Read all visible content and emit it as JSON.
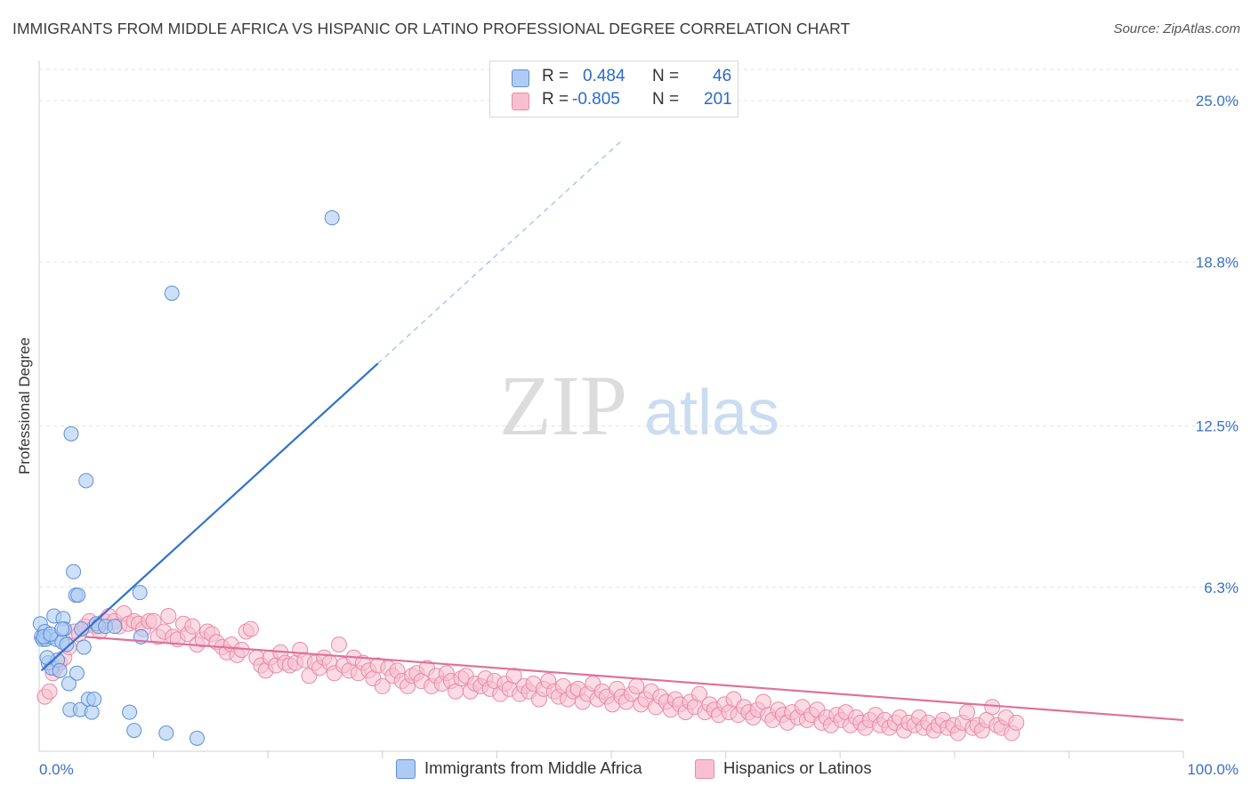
{
  "title": "IMMIGRANTS FROM MIDDLE AFRICA VS HISPANIC OR LATINO PROFESSIONAL DEGREE CORRELATION CHART",
  "source": "Source: ZipAtlas.com",
  "watermark": {
    "zip": "ZIP",
    "atlas": "atlas"
  },
  "legend": {
    "blue": {
      "r_label": "R =",
      "r_value": "0.484",
      "n_label": "N =",
      "n_value": "46"
    },
    "pink": {
      "r_label": "R =",
      "r_value": "-0.805",
      "n_label": "N =",
      "n_value": "201"
    }
  },
  "bottom_legend": {
    "blue": "Immigrants from Middle Africa",
    "pink": "Hispanics or Latinos"
  },
  "colors": {
    "blue_fill": "#aecbf3",
    "blue_stroke": "#5d8fd6",
    "blue_line": "#2f72d0",
    "pink_fill": "#f7bfd0",
    "pink_stroke": "#e88aa8",
    "pink_line": "#e0709a",
    "tick_label": "#3a6fc4"
  },
  "chart_data": {
    "type": "scatter",
    "title": "IMMIGRANTS FROM MIDDLE AFRICA VS HISPANIC OR LATINO PROFESSIONAL DEGREE CORRELATION CHART",
    "xlabel": "",
    "ylabel": "Professional Degree",
    "xlim": [
      0,
      100
    ],
    "ylim": [
      0,
      26.2
    ],
    "x_tick_labels": [
      "0.0%",
      "100.0%"
    ],
    "y_ticks": [
      6.3,
      12.5,
      18.8,
      25.0
    ],
    "y_tick_labels": [
      "6.3%",
      "12.5%",
      "18.8%",
      "25.0%"
    ],
    "grid": true,
    "legend_position": "top-center",
    "series": [
      {
        "name": "Immigrants from Middle Africa",
        "color": "#aecbf3",
        "points": [
          [
            0.1,
            4.9
          ],
          [
            0.2,
            4.4
          ],
          [
            0.3,
            4.3
          ],
          [
            0.5,
            4.6
          ],
          [
            0.6,
            4.3
          ],
          [
            0.8,
            3.4
          ],
          [
            1.0,
            4.4
          ],
          [
            1.1,
            3.2
          ],
          [
            1.3,
            5.2
          ],
          [
            1.5,
            4.3
          ],
          [
            1.6,
            3.5
          ],
          [
            1.8,
            3.1
          ],
          [
            2.0,
            4.2
          ],
          [
            2.1,
            5.1
          ],
          [
            2.2,
            4.7
          ],
          [
            2.4,
            4.1
          ],
          [
            2.6,
            2.6
          ],
          [
            2.7,
            1.6
          ],
          [
            2.8,
            12.2
          ],
          [
            3.0,
            6.9
          ],
          [
            3.2,
            6.0
          ],
          [
            3.3,
            3.0
          ],
          [
            3.4,
            6.0
          ],
          [
            3.6,
            1.6
          ],
          [
            3.9,
            4.0
          ],
          [
            4.1,
            10.4
          ],
          [
            4.3,
            2.0
          ],
          [
            4.6,
            1.5
          ],
          [
            4.8,
            2.0
          ],
          [
            5.0,
            4.9
          ],
          [
            5.2,
            4.8
          ],
          [
            5.8,
            4.8
          ],
          [
            7.9,
            1.5
          ],
          [
            8.3,
            0.8
          ],
          [
            8.8,
            6.1
          ],
          [
            8.9,
            4.4
          ],
          [
            11.1,
            0.7
          ],
          [
            11.6,
            17.6
          ],
          [
            13.8,
            0.5
          ],
          [
            25.6,
            20.5
          ],
          [
            0.4,
            4.4
          ],
          [
            1.0,
            4.5
          ],
          [
            2.0,
            4.7
          ],
          [
            3.7,
            4.7
          ],
          [
            6.6,
            4.8
          ],
          [
            0.7,
            3.6
          ]
        ],
        "trend": {
          "x": [
            0.2,
            29.6
          ],
          "y": [
            3.1,
            14.9
          ],
          "dashed_extension_to": [
            51.0,
            23.5
          ]
        }
      },
      {
        "name": "Hispanics or Latinos",
        "color": "#f7bfd0",
        "points": [
          [
            0.5,
            2.1
          ],
          [
            0.9,
            2.3
          ],
          [
            1.2,
            3.0
          ],
          [
            1.4,
            3.2
          ],
          [
            1.8,
            3.4
          ],
          [
            2.2,
            3.6
          ],
          [
            2.6,
            4.0
          ],
          [
            3.1,
            4.6
          ],
          [
            3.5,
            4.5
          ],
          [
            4.0,
            4.8
          ],
          [
            4.4,
            5.0
          ],
          [
            4.9,
            4.8
          ],
          [
            5.3,
            4.6
          ],
          [
            5.7,
            5.0
          ],
          [
            6.1,
            5.2
          ],
          [
            6.6,
            5.0
          ],
          [
            7.0,
            4.8
          ],
          [
            7.4,
            5.3
          ],
          [
            7.8,
            4.9
          ],
          [
            8.3,
            5.0
          ],
          [
            8.7,
            4.9
          ],
          [
            9.1,
            4.7
          ],
          [
            9.6,
            5.0
          ],
          [
            10.0,
            5.0
          ],
          [
            10.4,
            4.4
          ],
          [
            10.9,
            4.6
          ],
          [
            11.3,
            5.2
          ],
          [
            11.7,
            4.4
          ],
          [
            12.1,
            4.3
          ],
          [
            12.6,
            4.9
          ],
          [
            13.0,
            4.5
          ],
          [
            13.4,
            4.8
          ],
          [
            13.8,
            4.1
          ],
          [
            14.3,
            4.3
          ],
          [
            14.7,
            4.6
          ],
          [
            15.1,
            4.5
          ],
          [
            15.5,
            4.2
          ],
          [
            16.0,
            4.0
          ],
          [
            16.4,
            3.8
          ],
          [
            16.8,
            4.1
          ],
          [
            17.3,
            3.7
          ],
          [
            17.7,
            3.9
          ],
          [
            18.1,
            4.6
          ],
          [
            18.5,
            4.7
          ],
          [
            19.0,
            3.6
          ],
          [
            19.4,
            3.3
          ],
          [
            19.8,
            3.1
          ],
          [
            20.2,
            3.6
          ],
          [
            20.7,
            3.3
          ],
          [
            21.1,
            3.8
          ],
          [
            21.5,
            3.4
          ],
          [
            21.9,
            3.3
          ],
          [
            22.4,
            3.4
          ],
          [
            22.8,
            3.9
          ],
          [
            23.2,
            3.5
          ],
          [
            23.6,
            2.9
          ],
          [
            24.1,
            3.4
          ],
          [
            24.5,
            3.2
          ],
          [
            24.9,
            3.6
          ],
          [
            25.4,
            3.4
          ],
          [
            25.8,
            3.0
          ],
          [
            26.2,
            4.1
          ],
          [
            26.6,
            3.3
          ],
          [
            27.1,
            3.1
          ],
          [
            27.5,
            3.6
          ],
          [
            27.9,
            3.0
          ],
          [
            28.3,
            3.4
          ],
          [
            28.8,
            3.1
          ],
          [
            29.2,
            2.8
          ],
          [
            29.6,
            3.3
          ],
          [
            30.0,
            2.5
          ],
          [
            30.5,
            3.2
          ],
          [
            30.9,
            2.9
          ],
          [
            31.3,
            3.1
          ],
          [
            31.7,
            2.7
          ],
          [
            32.2,
            2.5
          ],
          [
            32.6,
            2.9
          ],
          [
            33.0,
            3.0
          ],
          [
            33.4,
            2.7
          ],
          [
            33.9,
            3.2
          ],
          [
            34.3,
            2.5
          ],
          [
            34.7,
            2.9
          ],
          [
            35.2,
            2.6
          ],
          [
            35.6,
            3.0
          ],
          [
            36.0,
            2.7
          ],
          [
            36.4,
            2.3
          ],
          [
            36.9,
            2.8
          ],
          [
            37.3,
            2.9
          ],
          [
            37.7,
            2.3
          ],
          [
            38.1,
            2.6
          ],
          [
            38.6,
            2.5
          ],
          [
            39.0,
            2.8
          ],
          [
            39.4,
            2.4
          ],
          [
            39.8,
            2.7
          ],
          [
            40.3,
            2.2
          ],
          [
            40.7,
            2.6
          ],
          [
            41.1,
            2.4
          ],
          [
            41.5,
            2.9
          ],
          [
            42.0,
            2.2
          ],
          [
            42.4,
            2.5
          ],
          [
            42.8,
            2.3
          ],
          [
            43.2,
            2.6
          ],
          [
            43.7,
            2.0
          ],
          [
            44.1,
            2.4
          ],
          [
            44.5,
            2.7
          ],
          [
            45.0,
            2.3
          ],
          [
            45.4,
            2.1
          ],
          [
            45.8,
            2.5
          ],
          [
            46.2,
            2.0
          ],
          [
            46.7,
            2.3
          ],
          [
            47.1,
            2.4
          ],
          [
            47.5,
            1.9
          ],
          [
            47.9,
            2.2
          ],
          [
            48.4,
            2.6
          ],
          [
            48.8,
            2.0
          ],
          [
            49.2,
            2.3
          ],
          [
            49.6,
            2.1
          ],
          [
            50.1,
            1.8
          ],
          [
            50.5,
            2.4
          ],
          [
            50.9,
            2.1
          ],
          [
            51.3,
            1.9
          ],
          [
            51.8,
            2.2
          ],
          [
            52.2,
            2.5
          ],
          [
            52.6,
            1.8
          ],
          [
            53.0,
            2.0
          ],
          [
            53.5,
            2.3
          ],
          [
            53.9,
            1.7
          ],
          [
            54.3,
            2.1
          ],
          [
            54.8,
            1.9
          ],
          [
            55.2,
            1.6
          ],
          [
            55.6,
            2.0
          ],
          [
            56.0,
            1.8
          ],
          [
            56.5,
            1.5
          ],
          [
            56.9,
            1.9
          ],
          [
            57.3,
            1.7
          ],
          [
            57.7,
            2.2
          ],
          [
            58.2,
            1.5
          ],
          [
            58.6,
            1.8
          ],
          [
            59.0,
            1.6
          ],
          [
            59.4,
            1.4
          ],
          [
            59.9,
            1.8
          ],
          [
            60.3,
            1.5
          ],
          [
            60.7,
            2.0
          ],
          [
            61.1,
            1.4
          ],
          [
            61.6,
            1.7
          ],
          [
            62.0,
            1.5
          ],
          [
            62.4,
            1.3
          ],
          [
            62.8,
            1.6
          ],
          [
            63.3,
            1.9
          ],
          [
            63.7,
            1.4
          ],
          [
            64.1,
            1.2
          ],
          [
            64.6,
            1.6
          ],
          [
            65.0,
            1.4
          ],
          [
            65.4,
            1.1
          ],
          [
            65.8,
            1.5
          ],
          [
            66.3,
            1.3
          ],
          [
            66.7,
            1.7
          ],
          [
            67.1,
            1.2
          ],
          [
            67.5,
            1.4
          ],
          [
            68.0,
            1.6
          ],
          [
            68.4,
            1.1
          ],
          [
            68.8,
            1.3
          ],
          [
            69.2,
            1.0
          ],
          [
            69.7,
            1.4
          ],
          [
            70.1,
            1.2
          ],
          [
            70.5,
            1.5
          ],
          [
            70.9,
            1.0
          ],
          [
            71.4,
            1.3
          ],
          [
            71.8,
            1.1
          ],
          [
            72.2,
            0.9
          ],
          [
            72.6,
            1.2
          ],
          [
            73.1,
            1.4
          ],
          [
            73.5,
            1.0
          ],
          [
            73.9,
            1.2
          ],
          [
            74.3,
            0.9
          ],
          [
            74.8,
            1.1
          ],
          [
            75.2,
            1.3
          ],
          [
            75.6,
            0.8
          ],
          [
            76.0,
            1.1
          ],
          [
            76.5,
            1.0
          ],
          [
            76.9,
            1.3
          ],
          [
            77.3,
            0.9
          ],
          [
            77.7,
            1.1
          ],
          [
            78.2,
            0.8
          ],
          [
            78.6,
            1.0
          ],
          [
            79.0,
            1.2
          ],
          [
            79.4,
            0.9
          ],
          [
            79.9,
            1.0
          ],
          [
            80.3,
            0.7
          ],
          [
            80.7,
            1.1
          ],
          [
            81.1,
            1.5
          ],
          [
            81.6,
            0.9
          ],
          [
            82.0,
            1.0
          ],
          [
            82.4,
            0.8
          ],
          [
            82.8,
            1.2
          ],
          [
            83.3,
            1.7
          ],
          [
            83.7,
            1.0
          ],
          [
            84.1,
            0.9
          ],
          [
            84.5,
            1.3
          ],
          [
            85.0,
            0.7
          ],
          [
            85.4,
            1.1
          ]
        ],
        "trend": {
          "x": [
            4.0,
            100.0
          ],
          "y": [
            4.4,
            1.2
          ]
        }
      }
    ]
  }
}
